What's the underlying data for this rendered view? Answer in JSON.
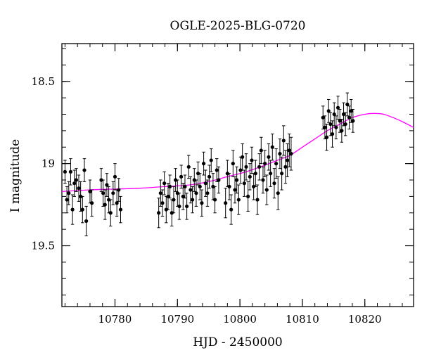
{
  "chart_data": {
    "type": "scatter",
    "title": "OGLE-2025-BLG-0720",
    "xlabel": "HJD - 2450000",
    "ylabel": "I magnitude",
    "xlim": [
      10771.5,
      10827.8
    ],
    "ylim": [
      19.87,
      18.27
    ],
    "y_inverted": true,
    "x_ticks": [
      "10780",
      "10790",
      "10800",
      "10810",
      "10820"
    ],
    "y_ticks": [
      "18.5",
      "19",
      "19.5"
    ],
    "x_tick_values": [
      10780,
      10790,
      10800,
      10810,
      10820
    ],
    "y_tick_values": [
      18.5,
      19.0,
      19.5
    ],
    "grid": false,
    "colors": {
      "points": "#000000",
      "model": "#ff00ff"
    },
    "model_curve": {
      "name": "",
      "x": [
        10771.5,
        10776,
        10780,
        10784,
        10788,
        10792,
        10795,
        10798,
        10801,
        10804,
        10806,
        10808,
        10810,
        10812,
        10814,
        10816,
        10818,
        10820,
        10821.5,
        10823,
        10824.5,
        10826,
        10827.8
      ],
      "y": [
        19.17,
        19.16,
        19.155,
        19.15,
        19.14,
        19.13,
        19.11,
        19.08,
        19.05,
        19.01,
        18.98,
        18.95,
        18.9,
        18.85,
        18.8,
        18.76,
        18.72,
        18.7,
        18.695,
        18.7,
        18.72,
        18.745,
        18.78
      ]
    },
    "series": [
      {
        "name": "",
        "x": [
          10772.0,
          10772.3,
          10772.6,
          10772.9,
          10773.2,
          10773.5,
          10773.8,
          10774.2,
          10774.5,
          10774.8,
          10775.1,
          10775.4,
          10776.0,
          10776.3,
          10777.8,
          10778.1,
          10778.4,
          10778.7,
          10779.0,
          10779.3,
          10779.7,
          10780.0,
          10780.3,
          10780.6,
          10780.9,
          10787.0,
          10787.3,
          10787.6,
          10787.9,
          10788.2,
          10788.5,
          10788.8,
          10789.1,
          10789.4,
          10789.7,
          10790.0,
          10790.3,
          10790.6,
          10790.9,
          10791.2,
          10791.5,
          10791.8,
          10792.1,
          10792.4,
          10792.7,
          10793.0,
          10793.3,
          10793.6,
          10793.9,
          10794.2,
          10794.5,
          10794.8,
          10795.1,
          10795.4,
          10795.7,
          10796.0,
          10796.3,
          10796.6,
          10797.7,
          10798.0,
          10798.3,
          10798.6,
          10798.9,
          10799.2,
          10799.5,
          10799.8,
          10800.1,
          10800.4,
          10800.7,
          10801.0,
          10801.3,
          10801.6,
          10801.9,
          10802.2,
          10802.5,
          10802.8,
          10803.1,
          10803.4,
          10803.7,
          10804.0,
          10804.3,
          10804.6,
          10804.9,
          10805.2,
          10805.5,
          10805.8,
          10806.1,
          10806.4,
          10806.7,
          10807.0,
          10807.3,
          10807.6,
          10807.9,
          10808.2,
          10813.3,
          10813.6,
          10813.9,
          10814.2,
          10814.5,
          10814.8,
          10815.1,
          10815.4,
          10815.7,
          10816.0,
          10816.3,
          10816.6,
          10816.9,
          10817.2,
          10817.5,
          10817.8,
          10818.1
        ],
        "y": [
          19.05,
          19.22,
          19.18,
          19.05,
          19.28,
          19.12,
          19.1,
          19.15,
          19.2,
          19.28,
          19.04,
          19.35,
          19.17,
          19.24,
          19.1,
          19.18,
          19.25,
          19.13,
          19.22,
          19.3,
          19.18,
          19.08,
          19.24,
          19.16,
          19.28,
          19.3,
          19.18,
          19.24,
          19.12,
          19.28,
          19.2,
          19.14,
          19.3,
          19.22,
          19.1,
          19.18,
          19.26,
          19.08,
          19.2,
          19.14,
          19.26,
          19.02,
          19.16,
          19.22,
          19.1,
          19.18,
          19.06,
          19.14,
          19.24,
          19.0,
          19.12,
          19.18,
          19.08,
          18.98,
          19.14,
          19.22,
          19.04,
          19.1,
          19.24,
          19.06,
          19.14,
          19.28,
          19.0,
          19.16,
          19.1,
          19.22,
          19.04,
          18.96,
          19.12,
          19.02,
          19.2,
          19.08,
          18.98,
          19.14,
          19.06,
          19.22,
          19.02,
          18.92,
          19.1,
          19.0,
          19.16,
          18.96,
          19.06,
          18.9,
          19.12,
          19.0,
          19.18,
          18.94,
          19.06,
          18.86,
          19.02,
          18.98,
          18.92,
          18.94,
          18.72,
          18.78,
          18.84,
          18.68,
          18.76,
          18.82,
          18.7,
          18.78,
          18.66,
          18.74,
          18.8,
          18.7,
          18.76,
          18.64,
          18.72,
          18.68,
          18.74
        ],
        "err": [
          0.07,
          0.08,
          0.07,
          0.08,
          0.09,
          0.08,
          0.07,
          0.08,
          0.09,
          0.08,
          0.07,
          0.09,
          0.07,
          0.08,
          0.07,
          0.08,
          0.09,
          0.07,
          0.08,
          0.08,
          0.07,
          0.08,
          0.08,
          0.07,
          0.08,
          0.09,
          0.08,
          0.08,
          0.07,
          0.08,
          0.08,
          0.07,
          0.08,
          0.08,
          0.07,
          0.08,
          0.08,
          0.07,
          0.08,
          0.07,
          0.08,
          0.07,
          0.08,
          0.08,
          0.07,
          0.08,
          0.07,
          0.08,
          0.08,
          0.07,
          0.08,
          0.08,
          0.07,
          0.07,
          0.08,
          0.08,
          0.07,
          0.08,
          0.09,
          0.08,
          0.08,
          0.09,
          0.08,
          0.08,
          0.08,
          0.09,
          0.08,
          0.08,
          0.08,
          0.08,
          0.09,
          0.08,
          0.08,
          0.08,
          0.08,
          0.09,
          0.08,
          0.08,
          0.08,
          0.08,
          0.09,
          0.08,
          0.08,
          0.08,
          0.09,
          0.09,
          0.1,
          0.09,
          0.1,
          0.09,
          0.1,
          0.1,
          0.1,
          0.1,
          0.07,
          0.07,
          0.08,
          0.07,
          0.07,
          0.08,
          0.07,
          0.07,
          0.07,
          0.07,
          0.07,
          0.07,
          0.07,
          0.07,
          0.07,
          0.07,
          0.07
        ]
      }
    ]
  }
}
